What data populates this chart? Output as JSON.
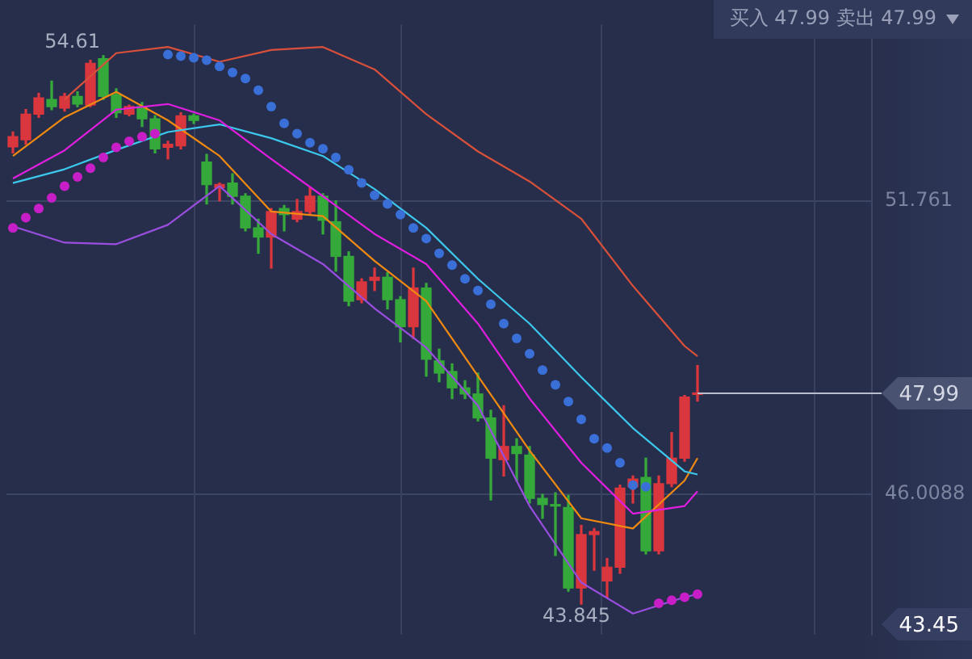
{
  "chart_data": {
    "type": "candlestick",
    "categories": [
      null,
      null,
      null,
      null,
      null,
      null,
      null,
      null,
      null,
      null,
      null,
      null,
      null,
      null,
      null,
      null,
      null,
      null,
      null,
      null,
      null,
      null,
      null,
      null,
      null,
      null,
      null,
      null,
      null,
      null,
      null,
      null,
      null,
      null,
      null,
      null,
      null,
      null,
      null,
      null,
      null,
      null,
      null,
      null,
      null,
      null,
      null,
      null,
      null,
      null,
      null,
      null,
      null,
      null,
      null,
      null,
      null,
      null,
      null,
      null,
      null,
      null,
      null,
      null,
      null,
      null,
      null
    ],
    "ohlc": [
      [
        52.82,
        53.11,
        52.7,
        53.02
      ],
      [
        52.96,
        53.55,
        52.87,
        53.46
      ],
      [
        53.46,
        53.87,
        53.4,
        53.78
      ],
      [
        53.75,
        54.11,
        53.55,
        53.61
      ],
      [
        53.58,
        53.87,
        53.52,
        53.81
      ],
      [
        53.81,
        53.9,
        53.61,
        53.66
      ],
      [
        53.64,
        54.52,
        53.61,
        54.46
      ],
      [
        54.55,
        54.61,
        53.75,
        53.81
      ],
      [
        53.84,
        53.96,
        53.4,
        53.49
      ],
      [
        53.46,
        53.64,
        53.43,
        53.61
      ],
      [
        53.61,
        53.69,
        53.22,
        53.37
      ],
      [
        53.37,
        53.43,
        52.7,
        52.78
      ],
      [
        52.81,
        52.93,
        52.58,
        52.87
      ],
      [
        52.84,
        53.49,
        52.78,
        53.43
      ],
      [
        53.43,
        53.46,
        53.28,
        53.34
      ],
      [
        52.52,
        52.67,
        51.7,
        52.08
      ],
      [
        52.02,
        52.11,
        51.76,
        52.08
      ],
      [
        52.11,
        52.29,
        51.7,
        51.85
      ],
      [
        51.85,
        51.9,
        51.17,
        51.23
      ],
      [
        51.23,
        51.4,
        50.73,
        51.05
      ],
      [
        51.05,
        51.61,
        50.44,
        51.55
      ],
      [
        51.61,
        51.67,
        51.17,
        51.49
      ],
      [
        51.4,
        51.79,
        51.35,
        51.55
      ],
      [
        51.55,
        52.02,
        51.49,
        51.85
      ],
      [
        51.85,
        51.9,
        51.11,
        51.38
      ],
      [
        51.35,
        51.76,
        50.38,
        50.67
      ],
      [
        50.67,
        50.76,
        49.7,
        49.79
      ],
      [
        49.82,
        50.23,
        49.76,
        50.17
      ],
      [
        50.2,
        50.44,
        50.0,
        50.26
      ],
      [
        50.26,
        50.35,
        49.64,
        49.82
      ],
      [
        49.82,
        49.88,
        48.99,
        49.29
      ],
      [
        49.29,
        50.44,
        49.06,
        50.05
      ],
      [
        50.05,
        50.14,
        48.32,
        48.65
      ],
      [
        48.62,
        48.85,
        48.21,
        48.38
      ],
      [
        48.41,
        48.56,
        47.88,
        48.09
      ],
      [
        48.09,
        48.23,
        47.88,
        47.97
      ],
      [
        47.97,
        48.38,
        47.44,
        47.5
      ],
      [
        47.5,
        47.65,
        45.89,
        46.71
      ],
      [
        46.68,
        47.74,
        46.36,
        46.94
      ],
      [
        46.94,
        47.09,
        46.27,
        46.8
      ],
      [
        46.77,
        46.94,
        45.83,
        45.92
      ],
      [
        45.92,
        46.0,
        45.53,
        45.8
      ],
      [
        45.8,
        46.03,
        44.8,
        45.77
      ],
      [
        45.74,
        45.98,
        44.1,
        44.16
      ],
      [
        44.16,
        45.39,
        43.845,
        45.21
      ],
      [
        45.21,
        45.33,
        44.51,
        45.27
      ],
      [
        44.3,
        44.74,
        43.98,
        44.57
      ],
      [
        44.57,
        46.18,
        44.45,
        46.12
      ],
      [
        46.15,
        46.36,
        45.83,
        46.3
      ],
      [
        46.33,
        46.71,
        44.83,
        44.89
      ],
      [
        44.89,
        46.36,
        44.83,
        46.21
      ],
      [
        46.21,
        47.21,
        46.15,
        46.71
      ],
      [
        46.71,
        47.94,
        46.65,
        47.91
      ],
      [
        47.96,
        48.53,
        47.83,
        47.99
      ],
      null,
      null,
      null,
      null,
      null,
      null,
      null,
      null,
      null,
      null,
      null,
      null,
      null
    ],
    "series": [
      {
        "type": "line",
        "color": "#d9503a",
        "marker": "none",
        "values": [
          null,
          null,
          null,
          null,
          53.75,
          null,
          null,
          null,
          54.66,
          null,
          null,
          null,
          54.78,
          null,
          null,
          null,
          54.49,
          null,
          null,
          null,
          54.72,
          null,
          null,
          null,
          54.78,
          null,
          null,
          null,
          54.34,
          null,
          null,
          null,
          53.46,
          null,
          null,
          null,
          52.73,
          null,
          null,
          null,
          52.14,
          null,
          null,
          null,
          51.41,
          null,
          null,
          null,
          50.09,
          null,
          null,
          null,
          48.91,
          48.71,
          null,
          null,
          null,
          null,
          null,
          null,
          null,
          null,
          null,
          null,
          null,
          null,
          null
        ]
      },
      {
        "type": "line",
        "color": "#9a4ee0",
        "marker": "none",
        "values": [
          51.26,
          null,
          null,
          null,
          50.94,
          null,
          null,
          null,
          50.91,
          null,
          null,
          null,
          51.29,
          null,
          null,
          null,
          52.05,
          null,
          null,
          null,
          51.11,
          null,
          null,
          null,
          50.52,
          null,
          null,
          null,
          49.65,
          null,
          null,
          null,
          48.88,
          null,
          null,
          null,
          47.74,
          null,
          null,
          null,
          45.77,
          null,
          null,
          null,
          44.27,
          null,
          null,
          null,
          43.66,
          null,
          null,
          null,
          43.98,
          44.04,
          null,
          null,
          null,
          null,
          null,
          null,
          null,
          null,
          null,
          null,
          null,
          null,
          null
        ]
      },
      {
        "type": "line",
        "color": "#e01ee0",
        "marker": "none",
        "values": [
          52.2,
          null,
          null,
          null,
          52.75,
          null,
          null,
          null,
          53.55,
          null,
          null,
          null,
          53.66,
          null,
          null,
          null,
          53.34,
          null,
          null,
          null,
          52.58,
          null,
          null,
          null,
          51.85,
          null,
          null,
          null,
          51.11,
          null,
          null,
          null,
          50.52,
          null,
          null,
          null,
          49.35,
          null,
          null,
          null,
          47.88,
          null,
          null,
          null,
          46.62,
          null,
          null,
          null,
          45.62,
          null,
          null,
          null,
          45.77,
          46.06,
          null,
          null,
          null,
          null,
          null,
          null,
          null,
          null,
          null,
          null,
          null,
          null,
          null
        ]
      },
      {
        "type": "line",
        "color": "#3cc8ec",
        "marker": "none",
        "values": [
          52.11,
          null,
          null,
          null,
          52.38,
          null,
          null,
          null,
          52.76,
          null,
          null,
          null,
          53.11,
          null,
          null,
          null,
          53.26,
          null,
          null,
          null,
          52.99,
          null,
          null,
          null,
          52.64,
          null,
          null,
          null,
          51.99,
          null,
          null,
          null,
          51.23,
          null,
          null,
          null,
          50.23,
          null,
          null,
          null,
          49.35,
          null,
          null,
          null,
          48.3,
          null,
          null,
          null,
          47.3,
          null,
          null,
          null,
          46.45,
          46.39,
          null,
          null,
          null,
          null,
          null,
          null,
          null,
          null,
          null,
          null,
          null,
          null,
          null
        ]
      },
      {
        "type": "line",
        "color": "#f08a10",
        "marker": "none",
        "values": [
          52.64,
          null,
          null,
          null,
          53.4,
          null,
          null,
          null,
          53.9,
          null,
          null,
          null,
          53.34,
          null,
          null,
          null,
          52.64,
          null,
          null,
          null,
          51.55,
          null,
          null,
          null,
          51.46,
          null,
          null,
          null,
          50.58,
          null,
          null,
          null,
          49.79,
          null,
          null,
          null,
          48.32,
          null,
          null,
          null,
          46.86,
          null,
          null,
          null,
          45.53,
          null,
          null,
          null,
          45.33,
          null,
          null,
          null,
          46.27,
          46.71,
          null,
          null,
          null,
          null,
          null,
          null,
          null,
          null,
          null,
          null,
          null,
          null,
          null
        ]
      },
      {
        "type": "scatter",
        "color": "#c81ec8",
        "marker": "circle",
        "values": [
          51.23,
          51.43,
          51.61,
          51.82,
          52.05,
          52.23,
          52.4,
          52.61,
          52.81,
          52.93,
          53.02,
          53.08,
          null,
          null,
          null,
          null,
          null,
          null,
          null,
          null,
          null,
          null,
          null,
          null,
          null,
          null,
          null,
          null,
          null,
          null,
          null,
          null,
          null,
          null,
          null,
          null,
          null,
          null,
          null,
          null,
          null,
          null,
          null,
          null,
          null,
          null,
          null,
          null,
          null,
          null,
          43.86,
          43.92,
          43.98,
          44.04,
          null,
          null,
          null,
          null,
          null,
          null,
          null,
          null,
          null,
          null,
          null,
          null,
          null
        ]
      },
      {
        "type": "scatter",
        "color": "#3a6fd8",
        "marker": "circle",
        "values": [
          null,
          null,
          null,
          null,
          null,
          null,
          null,
          null,
          null,
          null,
          null,
          null,
          54.63,
          54.6,
          54.57,
          54.52,
          54.4,
          54.28,
          54.16,
          53.93,
          53.61,
          53.28,
          53.08,
          52.9,
          52.78,
          52.61,
          52.37,
          52.11,
          51.87,
          51.7,
          51.49,
          51.23,
          51.02,
          50.73,
          50.5,
          50.23,
          50.0,
          49.73,
          49.35,
          49.06,
          48.76,
          48.44,
          48.15,
          47.82,
          47.47,
          47.09,
          46.91,
          46.62,
          46.18,
          46.15,
          null,
          null,
          null,
          null,
          null,
          null,
          null,
          null,
          null,
          null,
          null,
          null,
          null,
          null,
          null,
          null,
          null
        ]
      }
    ],
    "ylim": [
      43.25,
      55.22
    ],
    "yticks": [
      51.761,
      46.0088
    ],
    "grid": true,
    "legend": false,
    "ref_lines": [
      {
        "axis": "y",
        "value": 47.99,
        "label": "47.99",
        "color": "#b8bccc",
        "line_style": "solid"
      }
    ],
    "annotations": [
      "买入 47.99 卖出 47.99",
      "54.61",
      {
        "text": "43.845",
        "y": 43.845
      },
      "43.45"
    ]
  }
}
